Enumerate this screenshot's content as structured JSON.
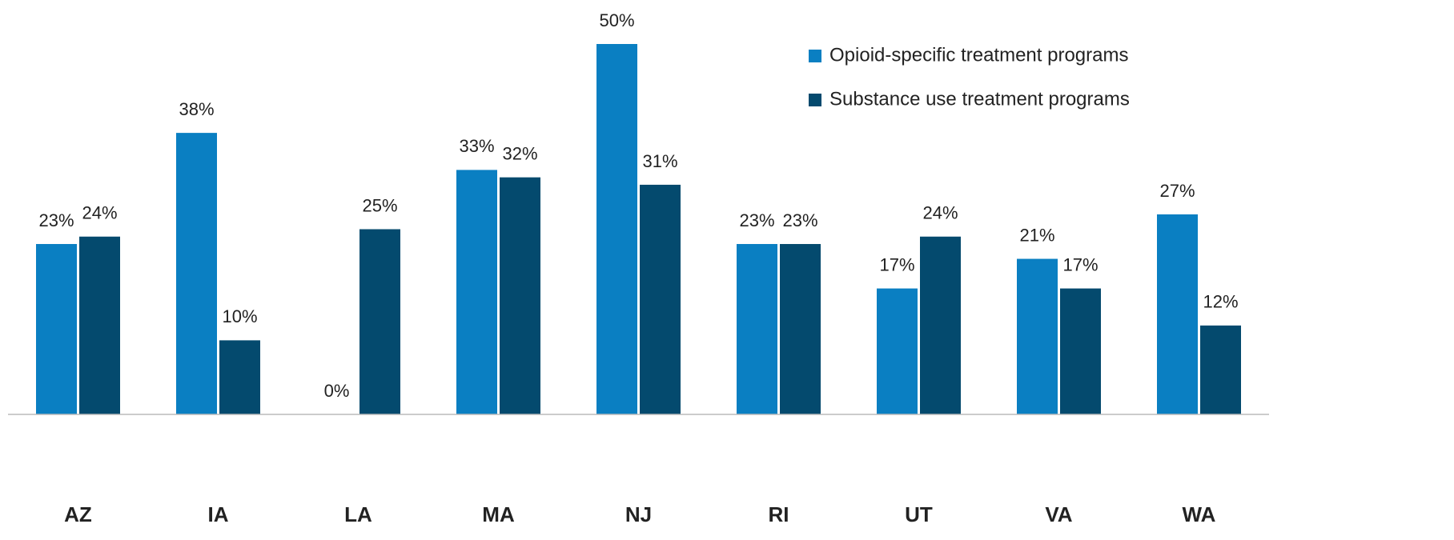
{
  "chart_data": {
    "type": "bar",
    "categories": [
      "AZ",
      "IA",
      "LA",
      "MA",
      "NJ",
      "RI",
      "UT",
      "VA",
      "WA"
    ],
    "series": [
      {
        "name": "Opioid-specific treatment programs",
        "color": "#0a7fc2",
        "values": [
          23,
          38,
          0,
          33,
          50,
          23,
          17,
          21,
          27
        ],
        "value_labels": [
          "23%",
          "38%",
          "0%",
          "33%",
          "50%",
          "23%",
          "17%",
          "21%",
          "27%"
        ]
      },
      {
        "name": "Substance use treatment programs",
        "color": "#044a6e",
        "values": [
          24,
          10,
          25,
          32,
          31,
          23,
          24,
          17,
          12
        ],
        "value_labels": [
          "24%",
          "10%",
          "25%",
          "32%",
          "31%",
          "23%",
          "24%",
          "17%",
          "12%"
        ]
      }
    ]
  }
}
